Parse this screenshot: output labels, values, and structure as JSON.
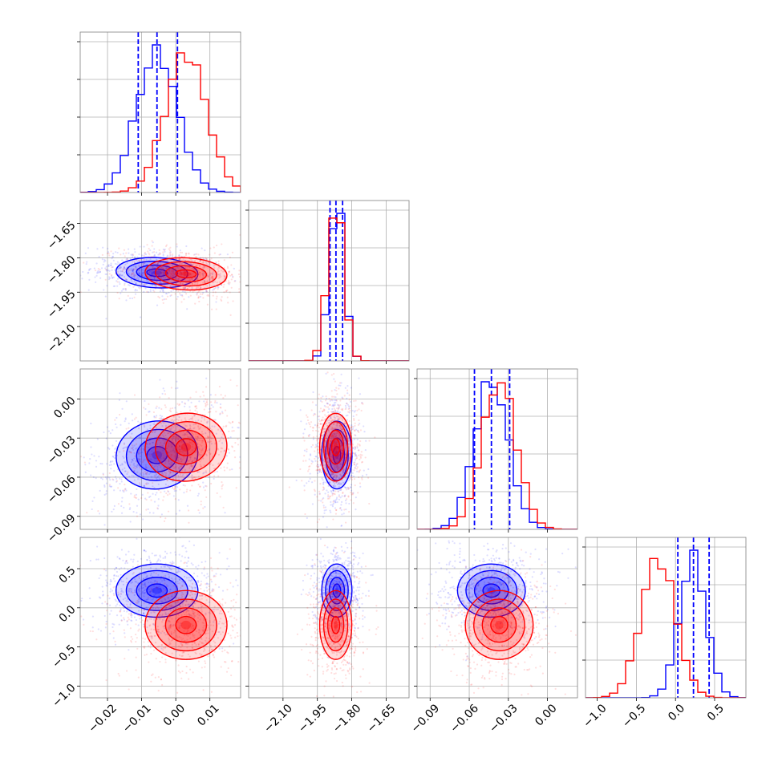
{
  "chart_data": {
    "type": "scatter",
    "figure_kind": "corner plot (2 posterior samples, 4 parameters)",
    "series": [
      {
        "name": "",
        "color": "#0000ff",
        "means": [
          -0.0055,
          -1.865,
          -0.043,
          0.22
        ],
        "sds": [
          0.006,
          0.033,
          0.013,
          0.17
        ],
        "corr01": -0.2,
        "corr02": 0.3,
        "quantile_lines": [
          [
            -0.011,
            -0.0055,
            0.0005
          ],
          [
            -1.895,
            -1.869,
            -1.84
          ],
          [
            -0.056,
            -0.043,
            -0.029
          ],
          [
            0.03,
            0.23,
            0.43
          ]
        ]
      },
      {
        "name": "",
        "color": "#ff0000",
        "means": [
          0.003,
          -1.87,
          -0.037,
          -0.22
        ],
        "sds": [
          0.006,
          0.035,
          0.013,
          0.22
        ],
        "corr01": -0.2,
        "corr02": 0.25,
        "quantile_lines": []
      }
    ],
    "parameters": [
      {
        "range": [
          -0.028,
          0.019
        ],
        "ticks": [
          -0.02,
          -0.01,
          0.0,
          0.01
        ],
        "tick_labels": [
          "−0.02",
          "−0.01",
          "0.00",
          "0.01"
        ]
      },
      {
        "range": [
          -2.25,
          -1.55
        ],
        "ticks": [
          -2.1,
          -1.95,
          -1.8,
          -1.65
        ],
        "tick_labels": [
          "−2.10",
          "−1.95",
          "−1.80",
          "−1.65"
        ]
      },
      {
        "range": [
          -0.1,
          0.023
        ],
        "ticks": [
          -0.09,
          -0.06,
          -0.03,
          0.0
        ],
        "tick_labels": [
          "−0.09",
          "−0.06",
          "−0.03",
          "0.00"
        ]
      },
      {
        "range": [
          -1.15,
          0.9
        ],
        "ticks": [
          -1.0,
          -0.5,
          0.0,
          0.5
        ],
        "tick_labels": [
          "−1.0",
          "−0.5",
          "0.0",
          "0.5"
        ]
      }
    ],
    "row_tick_labels": [
      [],
      [
        "−1.65",
        "−1.80",
        "−1.95",
        "−2.10"
      ],
      [
        "0.00",
        "−0.03",
        "−0.06",
        "−0.09"
      ],
      [
        "0.5",
        "0.0",
        "−0.5",
        "−1.0"
      ]
    ],
    "grid": true,
    "contour_levels": [
      0.5,
      1.0,
      1.5,
      2.0
    ]
  }
}
